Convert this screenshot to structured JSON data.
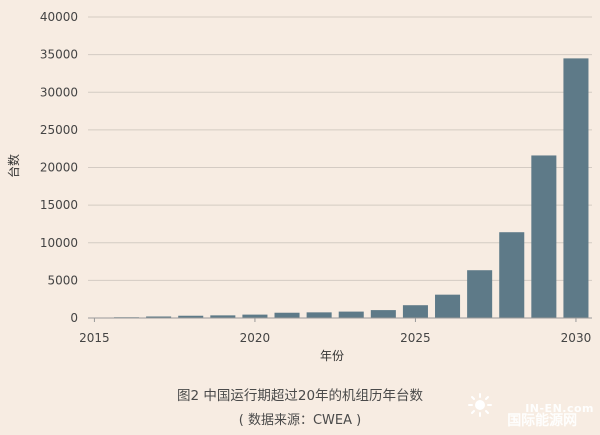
{
  "chart_data": {
    "type": "bar",
    "title": "",
    "xlabel": "年份",
    "ylabel": "台数",
    "x": [
      2016,
      2017,
      2018,
      2019,
      2020,
      2021,
      2022,
      2023,
      2024,
      2025,
      2026,
      2027,
      2028,
      2029,
      2030
    ],
    "values": [
      100,
      200,
      300,
      350,
      450,
      700,
      750,
      850,
      1050,
      1700,
      3100,
      6350,
      11400,
      21600,
      34500
    ],
    "xlim": [
      2014.8,
      2030.5
    ],
    "ylim": [
      0,
      40000
    ],
    "x_ticks": [
      2015,
      2020,
      2025,
      2030
    ],
    "y_ticks": [
      0,
      5000,
      10000,
      15000,
      20000,
      25000,
      30000,
      35000,
      40000
    ],
    "grid": true,
    "bar_color": "#5e7a88",
    "grid_color": "#d4cbc3"
  },
  "caption": {
    "main": "图2 中国运行期超过20年的机组历年台数",
    "source": "( 数据来源：CWEA )"
  },
  "watermark": {
    "top": "IN-EN.com",
    "bottom": "国际能源网"
  }
}
